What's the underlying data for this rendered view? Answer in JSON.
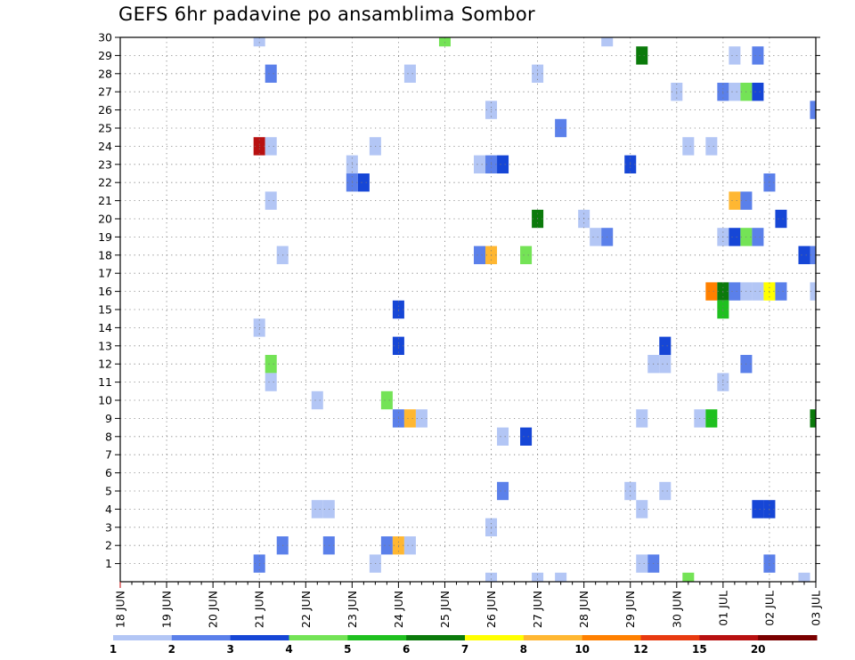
{
  "chart_data": {
    "type": "heatmap",
    "title": "GEFS 6hr padavine po ansamblima Sombor",
    "xlabel": "",
    "ylabel": "",
    "x_tick_labels": [
      "18 JUN",
      "19 JUN",
      "20 JUN",
      "21 JUN",
      "22 JUN",
      "23 JUN",
      "24 JUN",
      "25 JUN",
      "26 JUN",
      "27 JUN",
      "28 JUN",
      "29 JUN",
      "30 JUN",
      "01 JUL",
      "02 JUL",
      "03 JUL"
    ],
    "y_tick_labels": [
      "1",
      "2",
      "3",
      "4",
      "5",
      "6",
      "7",
      "8",
      "9",
      "10",
      "11",
      "12",
      "13",
      "14",
      "15",
      "16",
      "17",
      "18",
      "19",
      "20",
      "21",
      "22",
      "23",
      "24",
      "25",
      "26",
      "27",
      "28",
      "29",
      "30"
    ],
    "x_axis": "forecast time, 6-hour steps from 18 JUN 00Z (step 0) to 03 JUL 00Z (step 60)",
    "y_axis": "ensemble member",
    "grid": true,
    "colorbar": {
      "thresholds": [
        1,
        2,
        3,
        4,
        5,
        6,
        7,
        8,
        10,
        12,
        15,
        20
      ],
      "labels": [
        "1",
        "2",
        "3",
        "4",
        "5",
        "6",
        "7",
        "8",
        "10",
        "12",
        "15",
        "20"
      ],
      "colors": [
        "#b3c6f5",
        "#5b80ea",
        "#1646d6",
        "#74e356",
        "#1fc01f",
        "#0b7a0b",
        "#ffff00",
        "#ffb732",
        "#ff8000",
        "#e83a10",
        "#b81010",
        "#7a0000"
      ]
    },
    "cells": [
      {
        "t": 12,
        "m": 30,
        "c": 1
      },
      {
        "t": 28,
        "m": 30,
        "c": 4
      },
      {
        "t": 42,
        "m": 30,
        "c": 1
      },
      {
        "t": 45,
        "m": 29,
        "c": 6
      },
      {
        "t": 53,
        "m": 29,
        "c": 1
      },
      {
        "t": 55,
        "m": 29,
        "c": 2
      },
      {
        "t": 13,
        "m": 28,
        "c": 2
      },
      {
        "t": 25,
        "m": 28,
        "c": 1
      },
      {
        "t": 36,
        "m": 28,
        "c": 1
      },
      {
        "t": 48,
        "m": 27,
        "c": 1
      },
      {
        "t": 52,
        "m": 27,
        "c": 2
      },
      {
        "t": 53,
        "m": 27,
        "c": 1
      },
      {
        "t": 54,
        "m": 27,
        "c": 4
      },
      {
        "t": 55,
        "m": 27,
        "c": 3
      },
      {
        "t": 32,
        "m": 26,
        "c": 1
      },
      {
        "t": 60,
        "m": 26,
        "c": 2
      },
      {
        "t": 38,
        "m": 25,
        "c": 2
      },
      {
        "t": 12,
        "m": 24,
        "c": 11
      },
      {
        "t": 13,
        "m": 24,
        "c": 1
      },
      {
        "t": 22,
        "m": 24,
        "c": 1
      },
      {
        "t": 49,
        "m": 24,
        "c": 1
      },
      {
        "t": 51,
        "m": 24,
        "c": 1
      },
      {
        "t": 20,
        "m": 23,
        "c": 1
      },
      {
        "t": 31,
        "m": 23,
        "c": 1
      },
      {
        "t": 32,
        "m": 23,
        "c": 2
      },
      {
        "t": 33,
        "m": 23,
        "c": 3
      },
      {
        "t": 44,
        "m": 23,
        "c": 3
      },
      {
        "t": 20,
        "m": 22,
        "c": 2
      },
      {
        "t": 21,
        "m": 22,
        "c": 3
      },
      {
        "t": 56,
        "m": 22,
        "c": 2
      },
      {
        "t": 13,
        "m": 21,
        "c": 1
      },
      {
        "t": 53,
        "m": 21,
        "c": 8
      },
      {
        "t": 54,
        "m": 21,
        "c": 2
      },
      {
        "t": 36,
        "m": 20,
        "c": 6
      },
      {
        "t": 40,
        "m": 20,
        "c": 1
      },
      {
        "t": 57,
        "m": 20,
        "c": 3
      },
      {
        "t": 41,
        "m": 19,
        "c": 1
      },
      {
        "t": 42,
        "m": 19,
        "c": 2
      },
      {
        "t": 52,
        "m": 19,
        "c": 1
      },
      {
        "t": 53,
        "m": 19,
        "c": 3
      },
      {
        "t": 54,
        "m": 19,
        "c": 4
      },
      {
        "t": 55,
        "m": 19,
        "c": 2
      },
      {
        "t": 14,
        "m": 18,
        "c": 1
      },
      {
        "t": 31,
        "m": 18,
        "c": 2
      },
      {
        "t": 32,
        "m": 18,
        "c": 8
      },
      {
        "t": 35,
        "m": 18,
        "c": 4
      },
      {
        "t": 59,
        "m": 18,
        "c": 3
      },
      {
        "t": 60,
        "m": 18,
        "c": 2
      },
      {
        "t": 51,
        "m": 16,
        "c": 9
      },
      {
        "t": 52,
        "m": 16,
        "c": 6
      },
      {
        "t": 53,
        "m": 16,
        "c": 2
      },
      {
        "t": 54,
        "m": 16,
        "c": 1
      },
      {
        "t": 55,
        "m": 16,
        "c": 1
      },
      {
        "t": 56,
        "m": 16,
        "c": 7
      },
      {
        "t": 57,
        "m": 16,
        "c": 2
      },
      {
        "t": 60,
        "m": 16,
        "c": 1
      },
      {
        "t": 24,
        "m": 15,
        "c": 3
      },
      {
        "t": 52,
        "m": 15,
        "c": 5
      },
      {
        "t": 12,
        "m": 14,
        "c": 1
      },
      {
        "t": 24,
        "m": 13,
        "c": 3
      },
      {
        "t": 47,
        "m": 13,
        "c": 3
      },
      {
        "t": 13,
        "m": 12,
        "c": 4
      },
      {
        "t": 46,
        "m": 12,
        "c": 1
      },
      {
        "t": 47,
        "m": 12,
        "c": 1
      },
      {
        "t": 54,
        "m": 12,
        "c": 2
      },
      {
        "t": 13,
        "m": 11,
        "c": 1
      },
      {
        "t": 52,
        "m": 11,
        "c": 1
      },
      {
        "t": 17,
        "m": 10,
        "c": 1
      },
      {
        "t": 23,
        "m": 10,
        "c": 4
      },
      {
        "t": 24,
        "m": 9,
        "c": 2
      },
      {
        "t": 25,
        "m": 9,
        "c": 8
      },
      {
        "t": 26,
        "m": 9,
        "c": 1
      },
      {
        "t": 45,
        "m": 9,
        "c": 1
      },
      {
        "t": 50,
        "m": 9,
        "c": 1
      },
      {
        "t": 51,
        "m": 9,
        "c": 5
      },
      {
        "t": 60,
        "m": 9,
        "c": 6
      },
      {
        "t": 33,
        "m": 8,
        "c": 1
      },
      {
        "t": 35,
        "m": 8,
        "c": 3
      },
      {
        "t": 33,
        "m": 5,
        "c": 2
      },
      {
        "t": 44,
        "m": 5,
        "c": 1
      },
      {
        "t": 47,
        "m": 5,
        "c": 1
      },
      {
        "t": 17,
        "m": 4,
        "c": 1
      },
      {
        "t": 18,
        "m": 4,
        "c": 1
      },
      {
        "t": 45,
        "m": 4,
        "c": 1
      },
      {
        "t": 55,
        "m": 4,
        "c": 3
      },
      {
        "t": 56,
        "m": 4,
        "c": 3
      },
      {
        "t": 32,
        "m": 3,
        "c": 1
      },
      {
        "t": 14,
        "m": 2,
        "c": 2
      },
      {
        "t": 18,
        "m": 2,
        "c": 2
      },
      {
        "t": 23,
        "m": 2,
        "c": 2
      },
      {
        "t": 24,
        "m": 2,
        "c": 8
      },
      {
        "t": 25,
        "m": 2,
        "c": 1
      },
      {
        "t": 12,
        "m": 1,
        "c": 2
      },
      {
        "t": 22,
        "m": 1,
        "c": 1
      },
      {
        "t": 45,
        "m": 1,
        "c": 1
      },
      {
        "t": 46,
        "m": 1,
        "c": 2
      },
      {
        "t": 56,
        "m": 1,
        "c": 2
      },
      {
        "t": 32,
        "m": 0,
        "c": 1
      },
      {
        "t": 36,
        "m": 0,
        "c": 1
      },
      {
        "t": 38,
        "m": 0,
        "c": 1
      },
      {
        "t": 49,
        "m": 0,
        "c": 4
      },
      {
        "t": 59,
        "m": 0,
        "c": 1
      }
    ]
  }
}
